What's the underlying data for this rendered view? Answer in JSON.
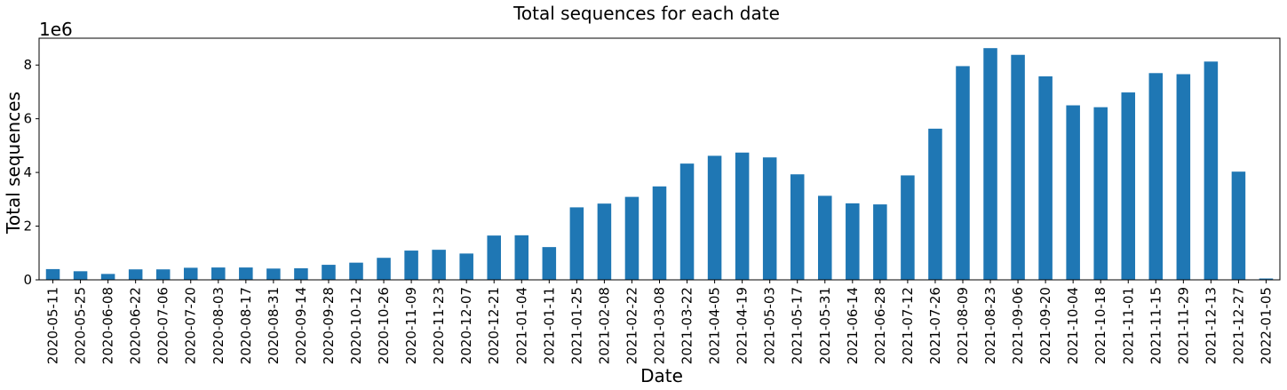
{
  "chart_data": {
    "type": "bar",
    "title": "Total sequences for each date",
    "xlabel": "Date",
    "ylabel": "Total sequences",
    "y_offset_label": "1e6",
    "ylim": [
      0,
      9.0
    ],
    "yticks": [
      0,
      2,
      4,
      6,
      8
    ],
    "grid": false,
    "legend": "none",
    "bar_color": "#1f77b4",
    "categories": [
      "2020-05-11",
      "2020-05-25",
      "2020-06-08",
      "2020-06-22",
      "2020-07-06",
      "2020-07-20",
      "2020-08-03",
      "2020-08-17",
      "2020-08-31",
      "2020-09-14",
      "2020-09-28",
      "2020-10-12",
      "2020-10-26",
      "2020-11-09",
      "2020-11-23",
      "2020-12-07",
      "2020-12-21",
      "2021-01-04",
      "2021-01-11",
      "2021-01-25",
      "2021-02-08",
      "2021-02-22",
      "2021-03-08",
      "2021-03-22",
      "2021-04-05",
      "2021-04-19",
      "2021-05-03",
      "2021-05-17",
      "2021-05-31",
      "2021-06-14",
      "2021-06-28",
      "2021-07-12",
      "2021-07-26",
      "2021-08-09",
      "2021-08-23",
      "2021-09-06",
      "2021-09-20",
      "2021-10-04",
      "2021-10-18",
      "2021-11-01",
      "2021-11-15",
      "2021-11-29",
      "2021-12-13",
      "2021-12-27",
      "2022-01-05"
    ],
    "values": [
      0.4,
      0.32,
      0.22,
      0.39,
      0.39,
      0.45,
      0.46,
      0.46,
      0.42,
      0.43,
      0.56,
      0.64,
      0.82,
      1.09,
      1.12,
      0.98,
      1.65,
      1.66,
      1.22,
      2.7,
      2.84,
      3.09,
      3.48,
      4.33,
      4.62,
      4.74,
      4.56,
      3.93,
      3.13,
      2.85,
      2.81,
      3.89,
      5.63,
      7.96,
      8.63,
      8.38,
      7.58,
      6.5,
      6.43,
      6.98,
      7.7,
      7.66,
      8.13,
      4.03,
      0.05
    ]
  }
}
